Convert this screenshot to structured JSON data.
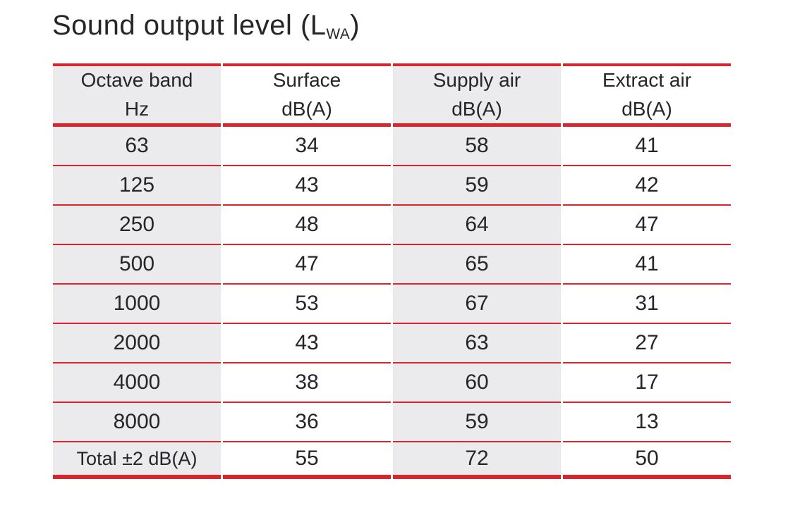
{
  "title": {
    "prefix": "Sound output level (L",
    "subscript": "WA",
    "suffix": ")"
  },
  "colors": {
    "accent_red": "#d8252e",
    "stripe_gray": "#ebebed",
    "text_dark": "#26262a"
  },
  "table": {
    "headers": [
      {
        "line1": "Octave band",
        "line2": "Hz"
      },
      {
        "line1": "Surface",
        "line2": "dB(A)"
      },
      {
        "line1": "Supply air",
        "line2": "dB(A)"
      },
      {
        "line1": "Extract air",
        "line2": "dB(A)"
      }
    ],
    "rows": [
      {
        "band": "63",
        "surface": "34",
        "supply_air": "58",
        "extract_air": "41"
      },
      {
        "band": "125",
        "surface": "43",
        "supply_air": "59",
        "extract_air": "42"
      },
      {
        "band": "250",
        "surface": "48",
        "supply_air": "64",
        "extract_air": "47"
      },
      {
        "band": "500",
        "surface": "47",
        "supply_air": "65",
        "extract_air": "41"
      },
      {
        "band": "1000",
        "surface": "53",
        "supply_air": "67",
        "extract_air": "31"
      },
      {
        "band": "2000",
        "surface": "43",
        "supply_air": "63",
        "extract_air": "27"
      },
      {
        "band": "4000",
        "surface": "38",
        "supply_air": "60",
        "extract_air": "17"
      },
      {
        "band": "8000",
        "surface": "36",
        "supply_air": "59",
        "extract_air": "13"
      },
      {
        "band": "Total ±2 dB(A)",
        "surface": "55",
        "supply_air": "72",
        "extract_air": "50"
      }
    ]
  }
}
